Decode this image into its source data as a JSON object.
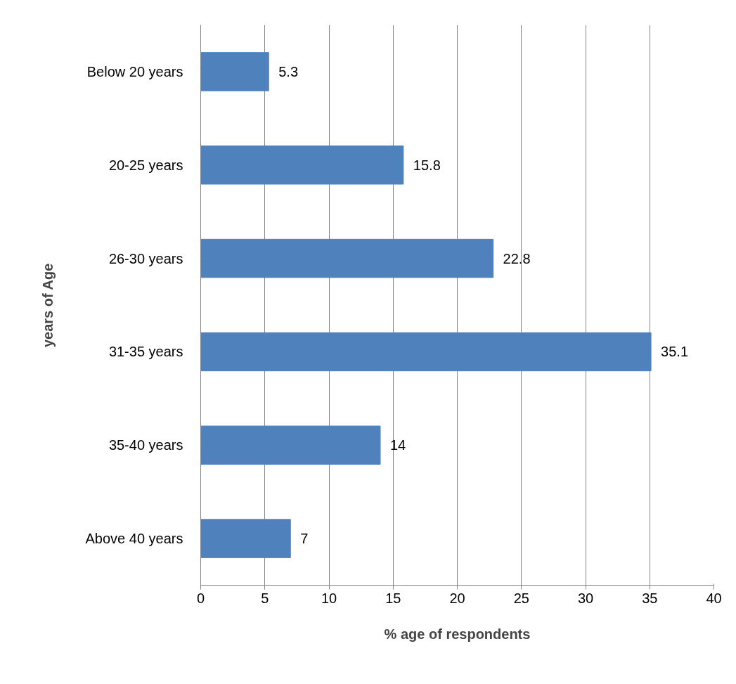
{
  "chart_data": {
    "type": "bar",
    "orientation": "horizontal",
    "xlabel": "% age of respondents",
    "ylabel": "years of Age",
    "categories": [
      "Below 20 years",
      "20-25 years",
      "26-30 years",
      "31-35 years",
      "35-40 years",
      "Above 40 years"
    ],
    "values": [
      5.3,
      15.8,
      22.8,
      35.1,
      14,
      7
    ],
    "color": "#4f81bd",
    "data_labels": true,
    "xlim": [
      0,
      40
    ],
    "xticks": [
      0,
      5,
      10,
      15,
      20,
      25,
      30,
      35,
      40
    ],
    "grid": "x"
  }
}
